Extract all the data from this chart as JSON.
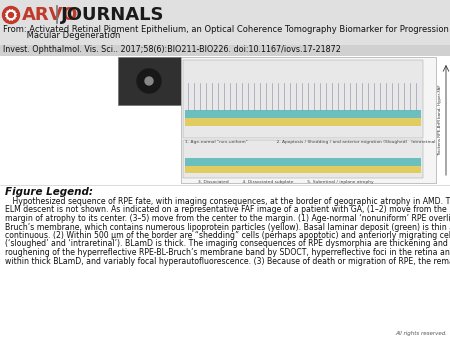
{
  "bg_color": "#e0e0e0",
  "header_bg": "#e0e0e0",
  "arvo_red": "#c0392b",
  "journals_dark": "#1a1a1a",
  "white": "#ffffff",
  "title_line1": "From: Activated Retinal Pigment Epithelium, an Optical Coherence Tomography Biomarker for Progression in Age-Related",
  "title_line2": "Macular Degeneration",
  "doi_line": "Invest. Ophthalmol. Vis. Sci.. 2017;58(6):BIO211-BIO226. doi:10.1167/iovs.17-21872",
  "figure_legend_title": "Figure Legend:",
  "figure_legend_text": "   Hypothesized sequence of RPE fate, with imaging consequences, at the border of geographic atrophy in AMD. The ELM descent is not shown. As indicated on a representative FAF image of a patient with GA, (1–2) move from the margin of atrophy to its center. (3–5) move from the center to the margin. (1) Age-normal ‘nonuniform’ RPE overlies Bruch’s membrane, which contains numerous lipoprotein particles (yellow). Basal laminar deposit (green) is thin and continuous. (2) Within 500 μm of the border are “shedding” cells (perhaps apoptotic) and anteriorly migrating cells (‘sloughed’ and ‘intraretinal’). BLamD is thick. The imaging consequences of RPE dysmorphia are thickening and roughening of the hyperreflective RPE-BL-Bruch’s membrane band by SDOCT, hyperreflective foci in the retina and within thick BLamD, and variably focal hyperautofluorescence. (3) Because of death or migration of RPE, the remaining",
  "rights_text": "All rights reserved.",
  "font_color": "#111111",
  "font_color_gray": "#555555",
  "header_fontsize": 6.0,
  "doi_fontsize": 5.8,
  "legend_title_fontsize": 7.5,
  "legend_text_fontsize": 5.6,
  "arvo_fontsize": 13,
  "journals_fontsize": 13,
  "diagram_bg": "#f5f5f5",
  "diagram_border": "#aaaaaa",
  "faf_bg": "#303030",
  "teal_color": "#6bbfbf",
  "yellow_color": "#e0cc60",
  "panel_bg": "#dedede",
  "caption_fontsize": 3.2,
  "rights_fontsize": 4.0
}
